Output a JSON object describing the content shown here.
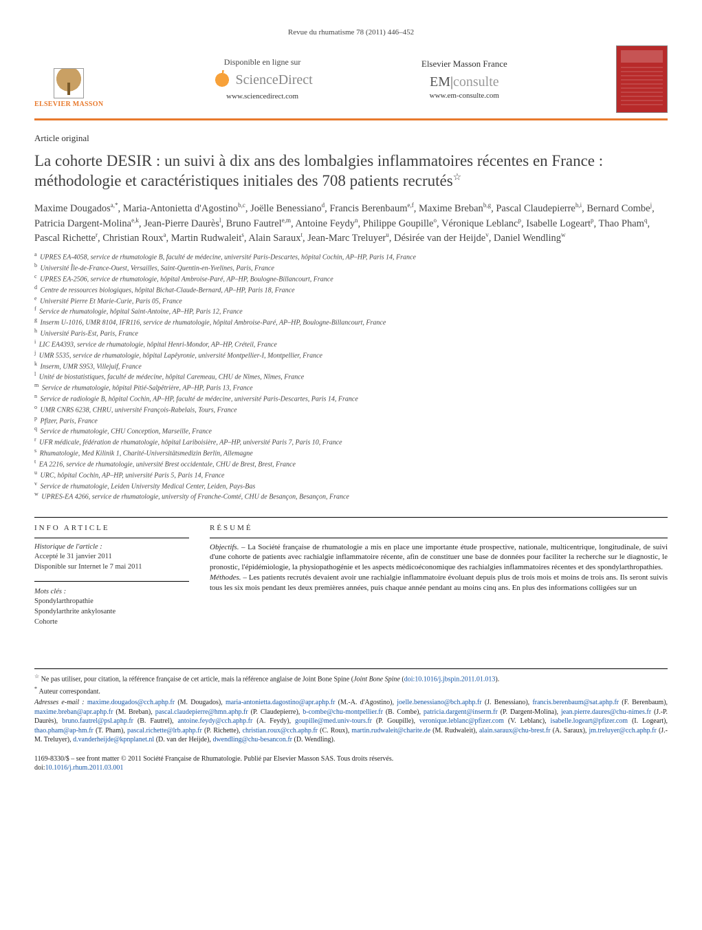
{
  "journal_ref": "Revue du rhumatisme 78 (2011) 446–452",
  "banner": {
    "elsevier": "ELSEVIER MASSON",
    "sd_available": "Disponible en ligne sur",
    "sd_name": "ScienceDirect",
    "sd_url": "www.sciencedirect.com",
    "em_name": "Elsevier Masson France",
    "em_logo_a": "EM",
    "em_logo_b": "consulte",
    "em_url": "www.em-consulte.com"
  },
  "article_type": "Article original",
  "title": "La cohorte DESIR : un suivi à dix ans des lombalgies inflammatoires récentes en France : méthodologie et caractéristiques initiales des 708 patients recrutés",
  "title_note_marker": "☆",
  "authors_html": "Maxime Dougados<sup>a,*</sup>, Maria-Antonietta d'Agostino<sup>b,c</sup>, Joëlle Benessiano<sup>d</sup>, Francis Berenbaum<sup>e,f</sup>, Maxime Breban<sup>b,g</sup>, Pascal Claudepierre<sup>h,i</sup>, Bernard Combe<sup>j</sup>, Patricia Dargent-Molina<sup>e,k</sup>, Jean-Pierre Daurès<sup>l</sup>, Bruno Fautrel<sup>e,m</sup>, Antoine Feydy<sup>n</sup>, Philippe Goupille<sup>o</sup>, Véronique Leblanc<sup>p</sup>, Isabelle Logeart<sup>p</sup>, Thao Pham<sup>q</sup>, Pascal Richette<sup>r</sup>, Christian Roux<sup>a</sup>, Martin Rudwaleit<sup>s</sup>, Alain Saraux<sup>t</sup>, Jean-Marc Treluyer<sup>u</sup>, Désirée van der Heijde<sup>v</sup>, Daniel Wendling<sup>w</sup>",
  "affiliations": [
    {
      "k": "a",
      "t": "UPRES EA-4058, service de rhumatologie B, faculté de médecine, université Paris-Descartes, hôpital Cochin, AP–HP, Paris 14, France"
    },
    {
      "k": "b",
      "t": "Université Île-de-France-Ouest, Versailles, Saint-Quentin-en-Yvelines, Paris, France"
    },
    {
      "k": "c",
      "t": "UPRES EA-2506, service de rhumatologie, hôpital Ambroise-Paré, AP–HP, Boulogne-Billancourt, France"
    },
    {
      "k": "d",
      "t": "Centre de ressources biologiques, hôpital Bichat-Claude-Bernard, AP–HP, Paris 18, France"
    },
    {
      "k": "e",
      "t": "Université Pierre Et Marie-Curie, Paris 05, France"
    },
    {
      "k": "f",
      "t": "Service de rhumatologie, hôpital Saint-Antoine, AP–HP, Paris 12, France"
    },
    {
      "k": "g",
      "t": "Inserm U-1016, UMR 8104, IFR116, service de rhumatologie, hôpital Ambroise-Paré, AP–HP, Boulogne-Billancourt, France"
    },
    {
      "k": "h",
      "t": "Université Paris-Est, Paris, France"
    },
    {
      "k": "i",
      "t": "LIC EA4393, service de rhumatologie, hôpital Henri-Mondor, AP–HP, Créteil, France"
    },
    {
      "k": "j",
      "t": "UMR 5535, service de rhumatologie, hôpital Lapêyronie, université Montpellier-I, Montpellier, France"
    },
    {
      "k": "k",
      "t": "Inserm, UMR S953, Villejuif, France"
    },
    {
      "k": "l",
      "t": "Unité de biostatistiques, faculté de médecine, hôpital Caremeau, CHU de Nîmes, Nîmes, France"
    },
    {
      "k": "m",
      "t": "Service de rhumatologie, hôpital Pitié-Salpêtrière, AP–HP, Paris 13, France"
    },
    {
      "k": "n",
      "t": "Service de radiologie B, hôpital Cochin, AP–HP, faculté de médecine, université Paris-Descartes, Paris 14, France"
    },
    {
      "k": "o",
      "t": "UMR CNRS 6238, CHRU, université François-Rabelais, Tours, France"
    },
    {
      "k": "p",
      "t": "Pfizer, Paris, France"
    },
    {
      "k": "q",
      "t": "Service de rhumatologie, CHU Conception, Marseille, France"
    },
    {
      "k": "r",
      "t": "UFR médicale, fédération de rhumatologie, hôpital Lariboisière, AP–HP, université Paris 7, Paris 10, France"
    },
    {
      "k": "s",
      "t": "Rhumatologie, Med Kilinik 1, Charité-Universitätsmedizin Berlin, Allemagne"
    },
    {
      "k": "t",
      "t": "EA 2216, service de rhumatologie, université Brest occidentale, CHU de Brest, Brest, France"
    },
    {
      "k": "u",
      "t": "URC, hôpital Cochin, AP–HP, université Paris 5, Paris 14, France"
    },
    {
      "k": "v",
      "t": "Service de rhumatologie, Leiden University Medical Center, Leiden, Pays-Bas"
    },
    {
      "k": "w",
      "t": "UPRES-EA 4266, service de rhumatologie, university of Franche-Comté, CHU de Besançon, Besançon, France"
    }
  ],
  "info": {
    "heading": "INFO ARTICLE",
    "history_label": "Historique de l'article :",
    "accepted": "Accepté le 31 janvier 2011",
    "online": "Disponible sur Internet le 7 mai 2011",
    "keywords_label": "Mots clés :",
    "keywords": [
      "Spondylarthropathie",
      "Spondylarthrite ankylosante",
      "Cohorte"
    ]
  },
  "abstract": {
    "heading": "RÉSUMÉ",
    "objectifs_label": "Objectifs. –",
    "objectifs": "La Société française de rhumatologie a mis en place une importante étude prospective, nationale, multicentrique, longitudinale, de suivi d'une cohorte de patients avec rachialgie inflammatoire récente, afin de constituer une base de données pour faciliter la recherche sur le diagnostic, le pronostic, l'épidémiologie, la physiopathogénie et les aspects médicoéconomique des rachialgies inflammatoires récentes et des spondylarthropathies.",
    "methodes_label": "Méthodes. –",
    "methodes": "Les patients recrutés devaient avoir une rachialgie inflammatoire évoluant depuis plus de trois mois et moins de trois ans. Ils seront suivis tous les six mois pendant les deux premières années, puis chaque année pendant au moins cinq ans. En plus des informations colligées sur un"
  },
  "footnotes": {
    "note_star": "Ne pas utiliser, pour citation, la référence française de cet article, mais la référence anglaise de Joint Bone Spine (",
    "note_star_doi": "doi:10.1016/j.jbspin.2011.01.013",
    "note_star_end": ").",
    "corr": "Auteur correspondant.",
    "emails_label": "Adresses e-mail :",
    "emails": [
      {
        "e": "maxime.dougados@cch.aphp.fr",
        "n": "(M. Dougados)"
      },
      {
        "e": "maria-antonietta.dagostino@apr.aphp.fr",
        "n": "(M.-A. d'Agostino)"
      },
      {
        "e": "joelle.benessiano@bch.aphp.fr",
        "n": "(J. Benessiano)"
      },
      {
        "e": "francis.berenbaum@sat.aphp.fr",
        "n": "(F. Berenbaum)"
      },
      {
        "e": "maxime.breban@apr.aphp.fr",
        "n": "(M. Breban)"
      },
      {
        "e": "pascal.claudepierre@hmn.aphp.fr",
        "n": "(P. Claudepierre)"
      },
      {
        "e": "b-combe@chu-montpellier.fr",
        "n": "(B. Combe)"
      },
      {
        "e": "patricia.dargent@inserm.fr",
        "n": "(P. Dargent-Molina)"
      },
      {
        "e": "jean.pierre.daures@chu-nimes.fr",
        "n": "(J.-P. Daurès)"
      },
      {
        "e": "bruno.fautrel@psl.aphp.fr",
        "n": "(B. Fautrel)"
      },
      {
        "e": "antoine.feydy@cch.aphp.fr",
        "n": "(A. Feydy)"
      },
      {
        "e": "goupille@med.univ-tours.fr",
        "n": "(P. Goupille)"
      },
      {
        "e": "veronique.leblanc@pfizer.com",
        "n": "(V. Leblanc)"
      },
      {
        "e": "isabelle.logeart@pfizer.com",
        "n": "(I. Logeart)"
      },
      {
        "e": "thao.pham@ap-hm.fr",
        "n": "(T. Pham)"
      },
      {
        "e": "pascal.richette@lrb.aphp.fr",
        "n": "(P. Richette)"
      },
      {
        "e": "christian.roux@cch.aphp.fr",
        "n": "(C. Roux)"
      },
      {
        "e": "martin.rudwaleit@charite.de",
        "n": "(M. Rudwaleit)"
      },
      {
        "e": "alain.saraux@chu-brest.fr",
        "n": "(A. Saraux)"
      },
      {
        "e": "jm.treluyer@cch.aphp.fr",
        "n": "(J.-M. Treluyer)"
      },
      {
        "e": "d.vanderheijde@kpnplanet.nl",
        "n": "(D. van der Heijde)"
      },
      {
        "e": "dwendling@chu-besancon.fr",
        "n": "(D. Wendling)"
      }
    ]
  },
  "copyright": {
    "line1": "1169-8330/$ – see front matter © 2011 Société Française de Rhumatologie. Publié par Elsevier Masson SAS. Tous droits réservés.",
    "doi_label": "doi:",
    "doi": "10.1016/j.rhum.2011.03.001"
  }
}
